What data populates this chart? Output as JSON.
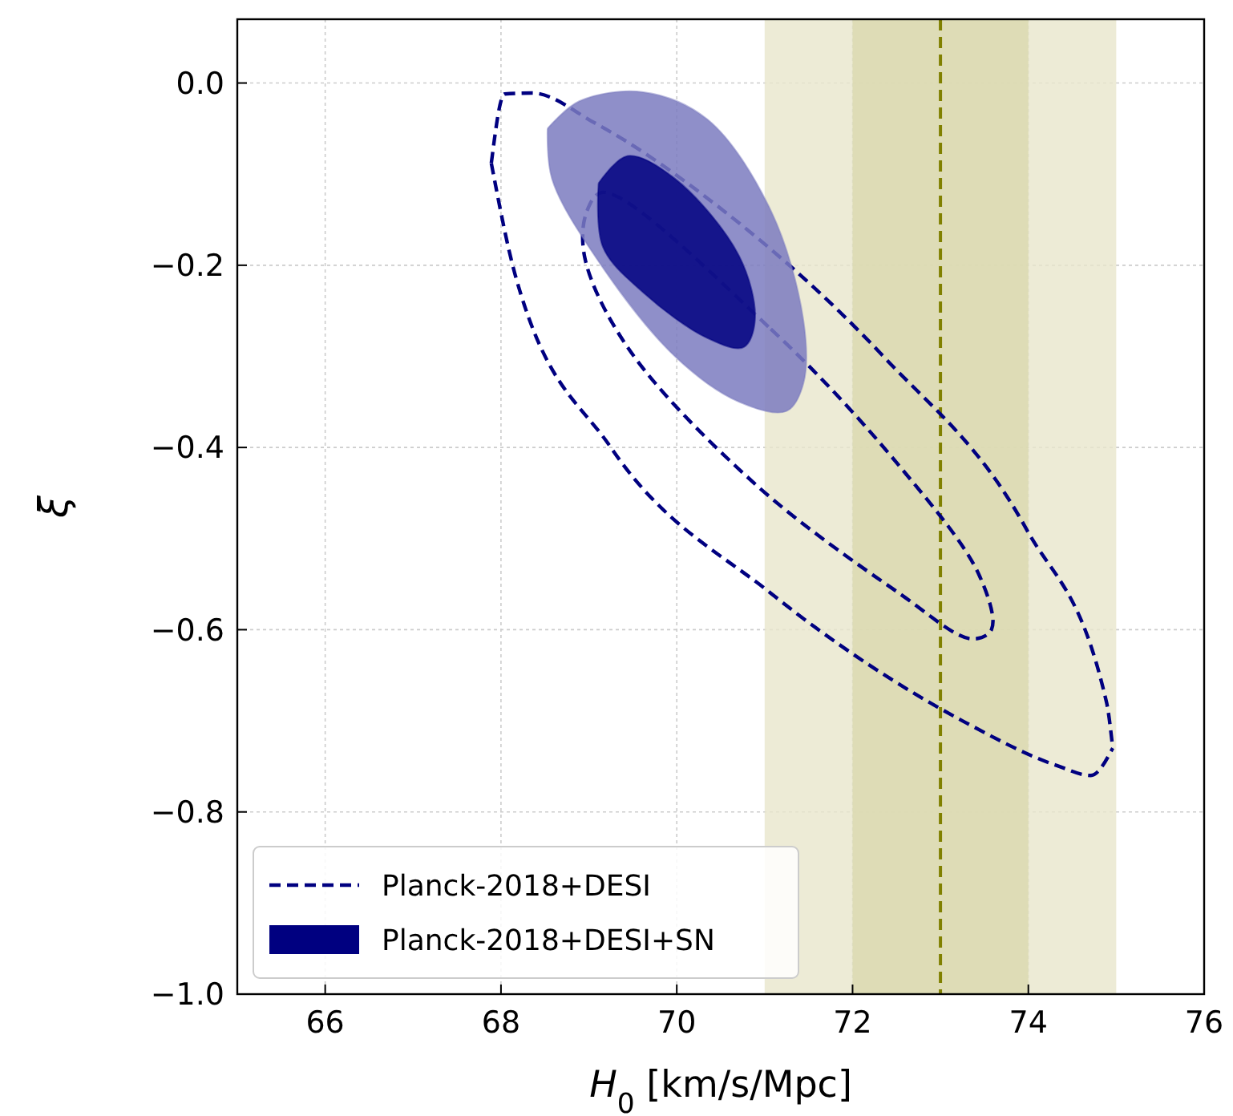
{
  "chart_data": {
    "type": "line",
    "xlabel": "H$_{0}$ [km/s/Mpc]",
    "ylabel": "ξ",
    "xlim": [
      65,
      76
    ],
    "xticks": [
      66,
      68,
      70,
      72,
      74,
      76
    ],
    "ylim": [
      -1.0,
      0.07
    ],
    "yticks": [
      {
        "value": -1.0,
        "label": "−1.0"
      },
      {
        "value": -0.8,
        "label": "−0.8"
      },
      {
        "value": -0.6,
        "label": "−0.6"
      },
      {
        "value": -0.4,
        "label": "−0.4"
      },
      {
        "value": -0.2,
        "label": "−0.2"
      },
      {
        "value": 0.0,
        "label": "0.0"
      }
    ],
    "grid": true,
    "legend": "bottom left",
    "line_style": "dashed",
    "bands": [
      {
        "axis": "x",
        "from": 71,
        "to": 75,
        "label": null,
        "color": "#e8e6cc"
      },
      {
        "axis": "x",
        "from": 72,
        "to": 74,
        "label": null,
        "color": "#d9d8ae"
      }
    ],
    "ref_lines": [
      {
        "axis": "x",
        "value": 73,
        "label": null,
        "color": "#808000",
        "line_style": "dashed"
      }
    ],
    "series": [
      {
        "name": "Planck-2018+DESI",
        "color": "#000080",
        "x": [
          67.89,
          68.04,
          68.35,
          69.07,
          70.53,
          72.35,
          73.98,
          74.89,
          74.96
        ],
        "values": [
          -0.088,
          -0.012,
          -0.011,
          -0.044,
          -0.14,
          -0.3,
          -0.49,
          -0.68,
          -0.73
        ]
      },
      {
        "color": "#000080",
        "x": [
          67.89,
          68.16,
          69.25,
          71.07,
          73.25,
          74.35,
          74.71,
          74.96
        ],
        "values": [
          -0.088,
          -0.21,
          -0.4,
          -0.56,
          -0.7,
          -0.75,
          -0.76,
          -0.73
        ]
      },
      {
        "type": "area",
        "color": "#7b7bc0",
        "x": [
          68.53,
          68.89,
          69.62,
          70.35,
          71.07,
          71.44,
          71.44,
          71.25,
          70.71,
          69.98,
          69.07,
          68.58,
          68.53
        ],
        "values": [
          -0.05,
          -0.02,
          -0.01,
          -0.04,
          -0.14,
          -0.26,
          -0.33,
          -0.36,
          -0.35,
          -0.3,
          -0.19,
          -0.105,
          -0.05
        ]
      },
      {
        "name": "Planck-2018+DESI+SN",
        "type": "area",
        "color": "#000080",
        "x": [
          69.11,
          69.44,
          69.98,
          70.71,
          70.89,
          70.76,
          70.35,
          69.62,
          69.16,
          69.11
        ],
        "values": [
          -0.11,
          -0.08,
          -0.105,
          -0.19,
          -0.26,
          -0.29,
          -0.28,
          -0.23,
          -0.18,
          -0.11
        ]
      }
    ]
  }
}
